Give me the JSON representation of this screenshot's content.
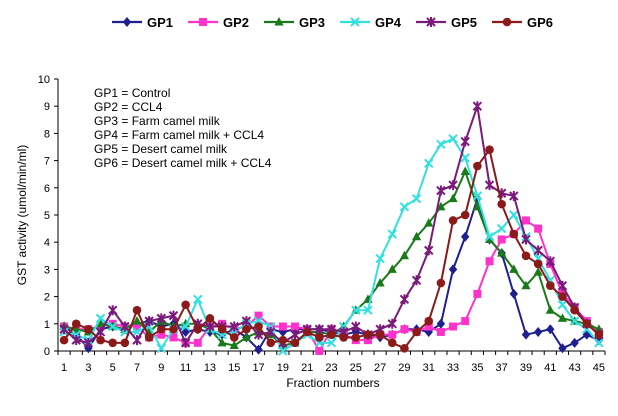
{
  "chart_data": {
    "type": "line",
    "title": "",
    "xlabel": "Fraction numbers",
    "ylabel": "GST activity (umol/min/ml)",
    "ylim": [
      0,
      10
    ],
    "xlim": [
      1,
      45
    ],
    "x_tick_labels": [
      "1",
      "3",
      "5",
      "7",
      "9",
      "11",
      "13",
      "15",
      "17",
      "19",
      "21",
      "23",
      "25",
      "27",
      "29",
      "31",
      "33",
      "35",
      "37",
      "39",
      "41",
      "43",
      "45"
    ],
    "y_tick_labels": [
      "0",
      "1",
      "2",
      "3",
      "4",
      "5",
      "6",
      "7",
      "8",
      "9",
      "10"
    ],
    "grid": false,
    "legend_position": "top",
    "annotations": [
      "GP1 = Control",
      "GP2 = CCL4",
      "GP3 = Farm camel milk",
      "GP4 = Farm camel milk + CCL4",
      "GP5 = Desert camel milk",
      "GP6 = Desert camel milk + CCL4"
    ],
    "x": [
      1,
      2,
      3,
      4,
      5,
      6,
      7,
      8,
      9,
      10,
      11,
      12,
      13,
      14,
      15,
      16,
      17,
      18,
      19,
      20,
      21,
      22,
      23,
      24,
      25,
      26,
      27,
      28,
      29,
      30,
      31,
      32,
      33,
      34,
      35,
      36,
      37,
      38,
      39,
      40,
      41,
      42,
      43,
      44,
      45
    ],
    "series": [
      {
        "name": "GP1",
        "color": "#1f1f8f",
        "marker": "diamond",
        "values": [
          0.9,
          0.6,
          0.1,
          0.8,
          0.9,
          0.8,
          1.0,
          1.1,
          0.9,
          1.0,
          0.7,
          0.8,
          0.7,
          0.6,
          0.8,
          0.5,
          0.05,
          0.8,
          0.7,
          0.8,
          0.8,
          0.8,
          0.7,
          0.6,
          0.7,
          0.6,
          0.5,
          0.6,
          0.8,
          0.8,
          0.7,
          1.0,
          3.0,
          4.2,
          5.6,
          4.1,
          3.6,
          2.1,
          0.6,
          0.7,
          0.8,
          0.1,
          0.3,
          0.6,
          0.4
        ]
      },
      {
        "name": "GP2",
        "color": "#ff33cc",
        "marker": "square",
        "values": [
          0.9,
          0.8,
          0.8,
          0.9,
          1.0,
          0.9,
          0.9,
          0.5,
          0.6,
          0.5,
          0.3,
          0.3,
          0.9,
          1.0,
          0.8,
          0.9,
          1.3,
          0.9,
          0.9,
          0.9,
          0.8,
          0.0,
          0.8,
          0.6,
          0.4,
          0.4,
          0.6,
          0.6,
          0.8,
          0.7,
          0.9,
          0.7,
          0.9,
          1.1,
          2.1,
          3.3,
          4.1,
          4.3,
          4.8,
          4.5,
          3.2,
          2.1,
          1.6,
          1.1,
          0.7
        ]
      },
      {
        "name": "GP3",
        "color": "#1a7a1a",
        "marker": "triangle",
        "values": [
          0.9,
          0.8,
          0.7,
          1.0,
          0.9,
          0.8,
          1.1,
          0.7,
          1.1,
          0.9,
          1.0,
          1.0,
          0.8,
          0.3,
          0.2,
          0.5,
          0.7,
          0.6,
          0.2,
          0.3,
          0.7,
          0.7,
          0.6,
          0.9,
          1.5,
          1.9,
          2.5,
          3.0,
          3.5,
          4.2,
          4.7,
          5.3,
          5.6,
          6.6,
          5.3,
          4.1,
          3.6,
          3.0,
          2.4,
          2.9,
          1.5,
          1.2,
          1.1,
          1.0,
          0.8
        ]
      },
      {
        "name": "GP4",
        "color": "#33e0e0",
        "marker": "x",
        "values": [
          0.7,
          0.6,
          0.4,
          1.2,
          0.9,
          0.7,
          0.7,
          0.9,
          0.1,
          0.8,
          0.9,
          1.9,
          0.8,
          0.6,
          0.7,
          1.0,
          1.1,
          0.9,
          0.0,
          0.3,
          0.6,
          0.3,
          0.3,
          0.9,
          1.5,
          1.5,
          3.4,
          4.3,
          5.3,
          5.6,
          6.9,
          7.6,
          7.8,
          7.1,
          5.7,
          4.2,
          4.5,
          5.0,
          4.2,
          3.4,
          2.6,
          1.7,
          1.1,
          0.8,
          0.3
        ]
      },
      {
        "name": "GP5",
        "color": "#7a1a7a",
        "marker": "star",
        "values": [
          0.8,
          0.4,
          0.3,
          0.7,
          1.5,
          0.9,
          0.4,
          1.1,
          1.2,
          1.3,
          0.3,
          1.0,
          0.9,
          0.9,
          0.9,
          1.1,
          0.6,
          0.7,
          0.3,
          0.6,
          0.8,
          0.8,
          0.8,
          0.7,
          0.9,
          0.6,
          0.8,
          1.0,
          1.9,
          2.6,
          3.7,
          5.9,
          6.1,
          7.7,
          9.0,
          6.1,
          5.8,
          5.7,
          4.1,
          3.7,
          3.3,
          2.4,
          1.6,
          1.0,
          0.6
        ]
      },
      {
        "name": "GP6",
        "color": "#8b1a1a",
        "marker": "circle",
        "values": [
          0.4,
          1.0,
          0.8,
          0.4,
          0.3,
          0.3,
          1.5,
          0.5,
          0.8,
          0.8,
          1.7,
          0.8,
          1.2,
          0.8,
          0.5,
          0.8,
          0.9,
          0.3,
          0.4,
          0.3,
          0.7,
          0.5,
          0.6,
          0.5,
          0.5,
          0.6,
          0.6,
          0.3,
          0.1,
          0.7,
          1.1,
          2.5,
          4.8,
          5.0,
          6.8,
          7.4,
          5.4,
          4.3,
          3.5,
          3.2,
          2.4,
          2.0,
          1.5,
          1.0,
          0.6
        ]
      }
    ]
  }
}
